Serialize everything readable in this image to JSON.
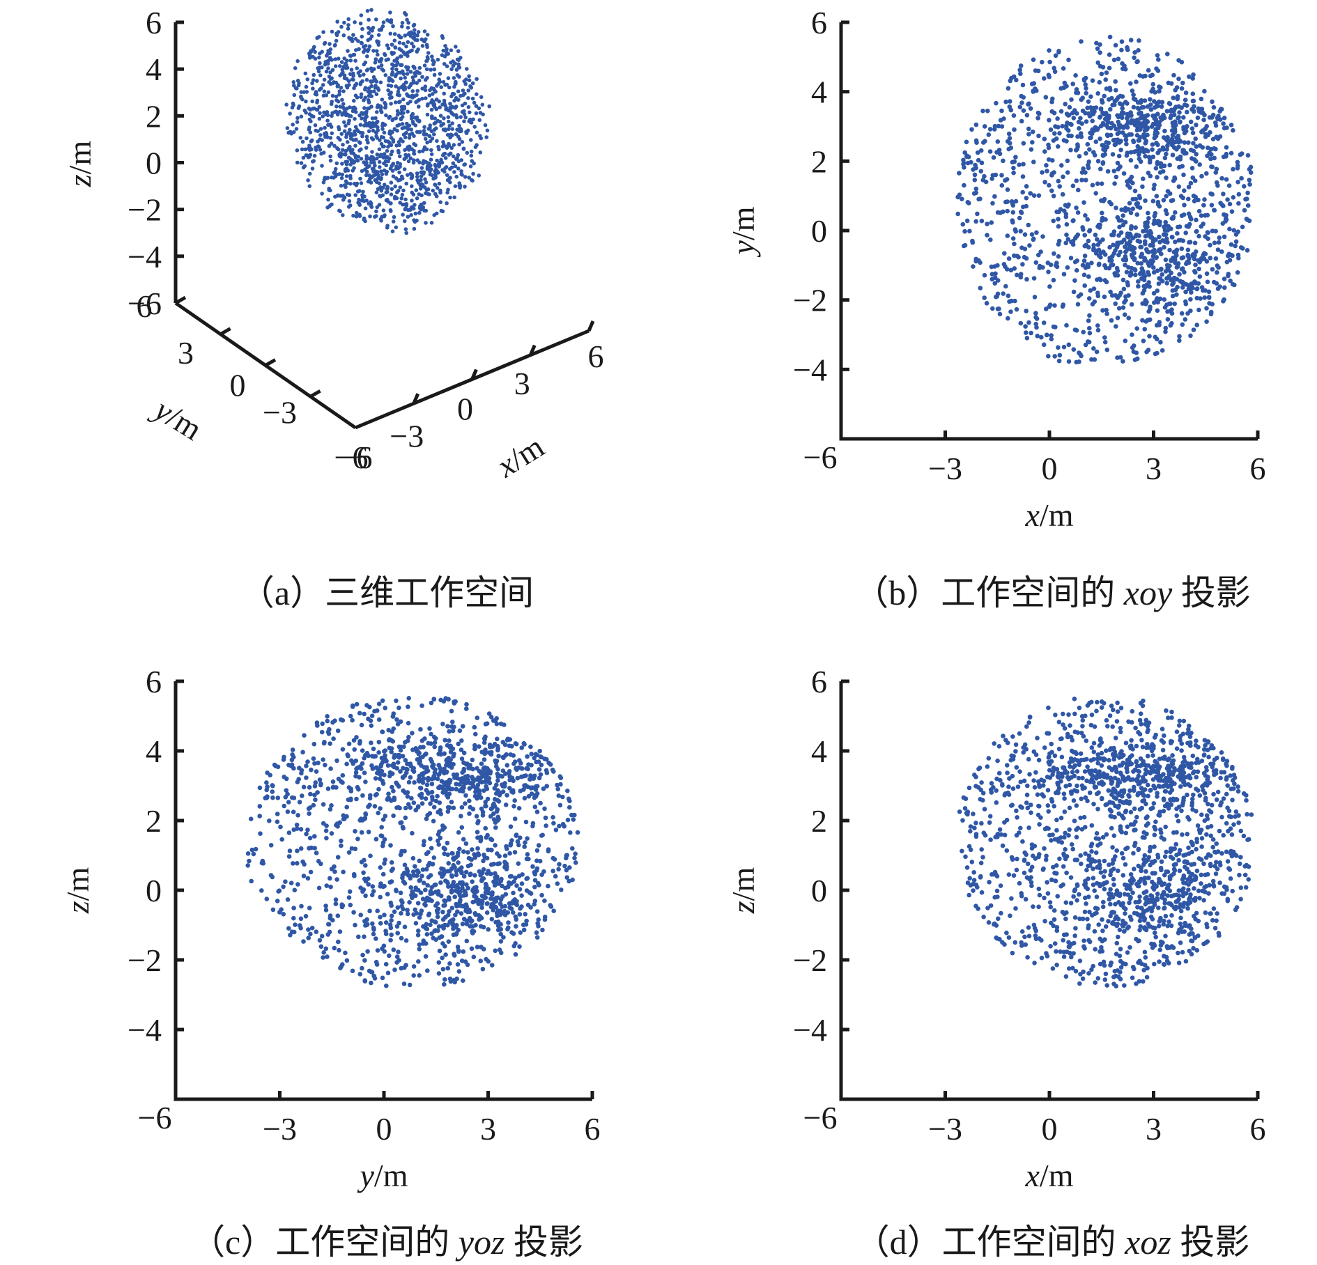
{
  "colors": {
    "points": "#2f57a6",
    "axes": "#1a1a1a"
  },
  "chart_data": [
    {
      "id": "a",
      "type": "scatter3d",
      "caption_prefix": "（a）三维工作空间",
      "caption_italic": "",
      "caption_suffix": "",
      "xlabel": "x/m",
      "ylabel": "y/m",
      "zlabel": "z/m",
      "xlim": [
        -6,
        6
      ],
      "ylim": [
        -6,
        6
      ],
      "zlim": [
        -6,
        6
      ],
      "xticks": [
        "−6",
        "−3",
        "0",
        "3",
        "6"
      ],
      "yticks": [
        "−6",
        "−3",
        "0",
        "3",
        "6"
      ],
      "zticks": [
        "−6",
        "−4",
        "−2",
        "0",
        "2",
        "4",
        "6"
      ],
      "cloud": {
        "center": [
          1.2,
          1.2,
          1.4
        ],
        "radius": [
          4.0,
          4.6,
          4.2
        ],
        "count": 1500,
        "seed": 11
      }
    },
    {
      "id": "b",
      "type": "scatter",
      "caption_prefix": "（b）工作空间的 ",
      "caption_italic": "xoy",
      "caption_suffix": " 投影",
      "xlabel": "x/m",
      "ylabel": "y/m",
      "xlim": [
        -6,
        6
      ],
      "ylim": [
        -6,
        6
      ],
      "xticks": [
        "−6",
        "−3",
        "0",
        "3",
        "6"
      ],
      "yticks": [
        "−6",
        "−4",
        "−2",
        "0",
        "2",
        "4",
        "6"
      ],
      "cloud": {
        "center": [
          1.6,
          0.8
        ],
        "radius": [
          4.3,
          4.8
        ],
        "count": 1700,
        "seed": 23
      }
    },
    {
      "id": "c",
      "type": "scatter",
      "caption_prefix": "（c）工作空间的 ",
      "caption_italic": "yoz",
      "caption_suffix": " 投影",
      "xlabel": "y/m",
      "ylabel": "z/m",
      "xlim": [
        -6,
        6
      ],
      "ylim": [
        -6,
        6
      ],
      "xticks": [
        "−6",
        "−3",
        "0",
        "3",
        "6"
      ],
      "yticks": [
        "−6",
        "−4",
        "−2",
        "0",
        "2",
        "4",
        "6"
      ],
      "cloud": {
        "center": [
          0.8,
          1.4
        ],
        "radius": [
          4.8,
          4.2
        ],
        "count": 1700,
        "seed": 37
      }
    },
    {
      "id": "d",
      "type": "scatter",
      "caption_prefix": "（d）工作空间的 ",
      "caption_italic": "xoz",
      "caption_suffix": " 投影",
      "xlabel": "x/m",
      "ylabel": "z/m",
      "xlim": [
        -6,
        6
      ],
      "ylim": [
        -6,
        6
      ],
      "xticks": [
        "−6",
        "−3",
        "0",
        "3",
        "6"
      ],
      "yticks": [
        "−6",
        "−4",
        "−2",
        "0",
        "2",
        "4",
        "6"
      ],
      "cloud": {
        "center": [
          1.6,
          1.4
        ],
        "radius": [
          4.3,
          4.2
        ],
        "count": 1700,
        "seed": 53
      }
    }
  ]
}
